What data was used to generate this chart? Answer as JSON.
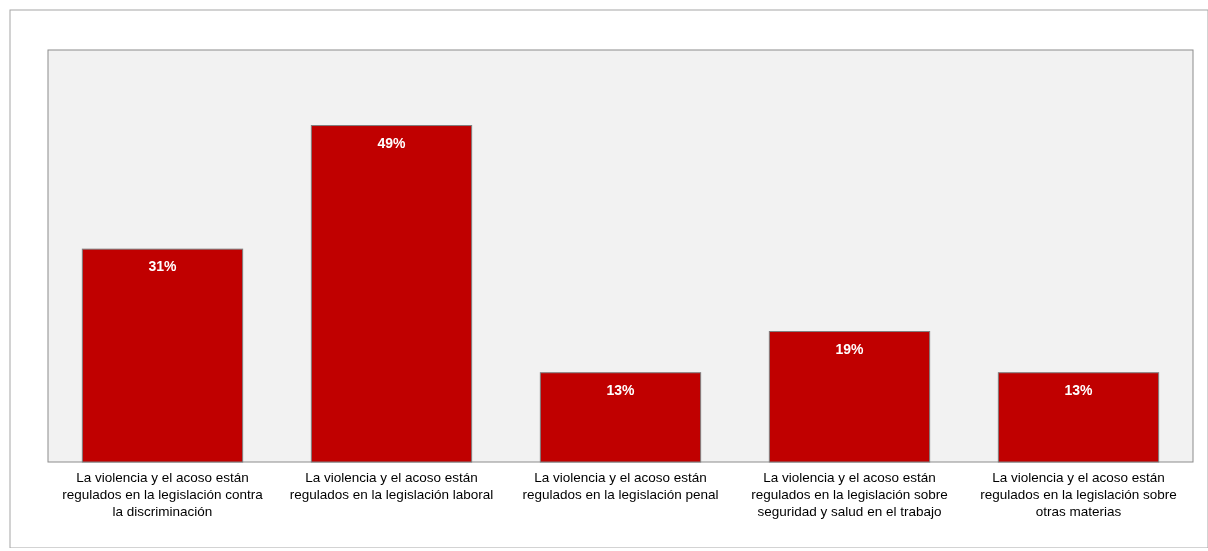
{
  "chart_data": {
    "type": "bar",
    "categories": [
      "La violencia y el acoso están regulados en la legislación contra la discriminación",
      "La violencia y el acoso están regulados en la legislación laboral",
      "La violencia y el acoso están regulados en la legislación penal",
      "La violencia y el acoso están regulados en la legislación sobre seguridad y salud en el trabajo",
      "La violencia y el acoso están regulados en la legislación sobre otras materias"
    ],
    "values": [
      31,
      49,
      13,
      19,
      13
    ],
    "value_labels": [
      "31%",
      "49%",
      "13%",
      "19%",
      "13%"
    ],
    "color": "#c00000",
    "ylim": [
      0,
      60
    ],
    "tick_labels": "x",
    "grid": false
  }
}
